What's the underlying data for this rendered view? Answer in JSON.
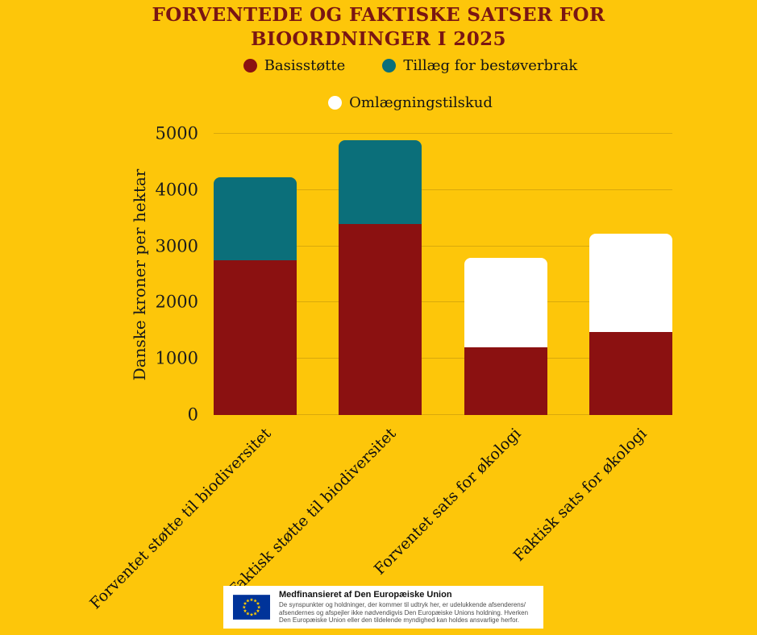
{
  "page": {
    "background": "#FDC60A"
  },
  "title": {
    "line1": "FORVENTEDE OG FAKTISKE SATSER FOR",
    "line2": "BIOORDNINGER I 2025",
    "color": "#7A1613"
  },
  "chart_data": {
    "type": "bar",
    "stacked": true,
    "title": "FORVENTEDE OG FAKTISKE SATSER FOR BIOORDNINGER I 2025",
    "categories": [
      "Forventet støtte til biodiversitet",
      "Faktisk støtte til biodiversitet",
      "Forventet sats for økologi",
      "Faktisk sats for økologi"
    ],
    "series": [
      {
        "name": "Basisstøtte",
        "color": "#8B1111",
        "values": [
          2750,
          3400,
          1200,
          1480
        ]
      },
      {
        "name": "Tillæg for bestøverbrak",
        "color": "#0B6F7A",
        "values": [
          1470,
          1490,
          0,
          0
        ]
      },
      {
        "name": "Omlægningstilskud",
        "color": "#FFFFFF",
        "values": [
          0,
          0,
          1590,
          1750
        ]
      }
    ],
    "stack_totals": [
      4220,
      4890,
      2790,
      3230
    ],
    "xlabel": "",
    "ylabel": "Danske kroner per hektar",
    "yticks": [
      0,
      1000,
      2000,
      3000,
      4000,
      5000
    ],
    "ylim": [
      0,
      5000
    ],
    "grid": "horizontal",
    "legend_position": "top-center"
  },
  "colors": {
    "background": "#FDC60A",
    "gridline": "#D9A90B",
    "title_text": "#7A1613",
    "axis_text": "#1B1B1B",
    "eu_flag_blue": "#003399",
    "eu_star_yellow": "#FFCC00"
  },
  "eu_notice": {
    "title": "Medfinansieret af Den Europæiske Union",
    "body_lines": [
      "De synspunkter og holdninger, der kommer til udtryk her, er udelukkende afsenderens/",
      "afsendernes og afspejler ikke nødvendigvis Den Europæiske Unions holdning. Hverken",
      "Den Europæiske Union eller den tildelende myndighed kan holdes ansvarlige herfor."
    ]
  }
}
